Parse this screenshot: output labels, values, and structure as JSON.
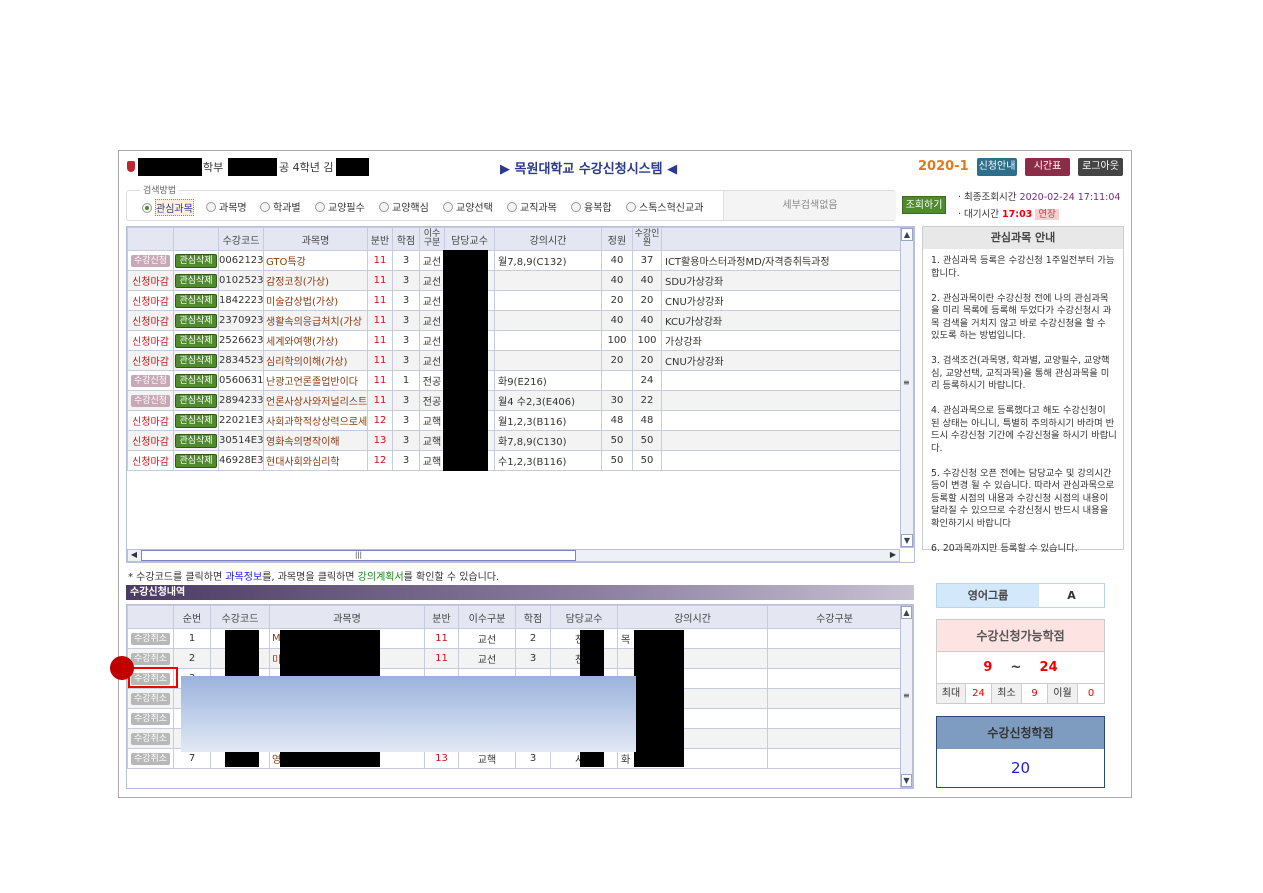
{
  "header": {
    "dept_suffix": "학부",
    "major_suffix": "공 4학년 김",
    "title": "▶ 목원대학교 수강신청시스템 ◀",
    "term": "2020-1",
    "buttons": [
      {
        "label": "신청안내",
        "color": "#2d6e8c"
      },
      {
        "label": "시간표",
        "color": "#8c2d48"
      },
      {
        "label": "로그아웃",
        "color": "#444444"
      }
    ]
  },
  "search": {
    "legend": "검색방법",
    "options": [
      "관심과목",
      "과목명",
      "학과별",
      "교양필수",
      "교양핵심",
      "교양선택",
      "교직과목",
      "융복합",
      "스톡스혁신교과"
    ],
    "selected": "관심과목",
    "detail": "세부검색없음",
    "submit": "조회하기",
    "last_query_label": "최종조회시간",
    "last_query": "2020-02-24 17:11:04",
    "wait_label": "대기시간",
    "wait": "17:03",
    "extend": "연장"
  },
  "interest": {
    "headers": [
      "",
      "",
      "수강코드",
      "과목명",
      "분반",
      "학점",
      "이수구분",
      "담당교수",
      "강의시간",
      "정원",
      "수강인원",
      ""
    ],
    "rows": [
      [
        "수강신청",
        "관심삭제",
        "0062123",
        "GTO특강",
        "11",
        "3",
        "교선",
        "",
        "월7,8,9(C132)",
        "40",
        "37",
        "ICT활용마스터과정MD/자격증취득과정"
      ],
      [
        "신청마감",
        "관심삭제",
        "0102523",
        "감정코칭(가상)",
        "11",
        "3",
        "교선",
        "",
        "",
        "40",
        "40",
        "SDU가상강좌"
      ],
      [
        "신청마감",
        "관심삭제",
        "1842223",
        "미술감상법(가상)",
        "11",
        "3",
        "교선",
        "",
        "",
        "20",
        "20",
        "CNU가상강좌"
      ],
      [
        "신청마감",
        "관심삭제",
        "2370923",
        "생활속의응급처치(가상",
        "11",
        "3",
        "교선",
        "",
        "",
        "40",
        "40",
        "KCU가상강좌"
      ],
      [
        "신청마감",
        "관심삭제",
        "2526623",
        "세계와여행(가상)",
        "11",
        "3",
        "교선",
        "",
        "",
        "100",
        "100",
        "가상강좌"
      ],
      [
        "신청마감",
        "관심삭제",
        "2834523",
        "심리학의이해(가상)",
        "11",
        "3",
        "교선",
        "",
        "",
        "20",
        "20",
        "CNU가상강좌"
      ],
      [
        "수강신청",
        "관심삭제",
        "0560631",
        "난광고언론졸업반이다",
        "11",
        "1",
        "전공",
        "",
        "화9(E216)",
        "",
        "24",
        ""
      ],
      [
        "수강신청",
        "관심삭제",
        "2894233",
        "언론사상사와저널리스트",
        "11",
        "3",
        "전공",
        "",
        "월4 수2,3(E406)",
        "30",
        "22",
        ""
      ],
      [
        "신청마감",
        "관심삭제",
        "22021E3",
        "사회과학적상상력으로세",
        "12",
        "3",
        "교핵",
        "",
        "월1,2,3(B116)",
        "48",
        "48",
        ""
      ],
      [
        "신청마감",
        "관심삭제",
        "30514E3",
        "영화속의명작이해",
        "13",
        "3",
        "교핵",
        "",
        "화7,8,9(C130)",
        "50",
        "50",
        ""
      ],
      [
        "신청마감",
        "관심삭제",
        "46928E3",
        "현대사회와심리학",
        "12",
        "3",
        "교핵",
        "",
        "수1,2,3(B116)",
        "50",
        "50",
        ""
      ]
    ]
  },
  "notice": {
    "p1": "* 수강코드를 클릭하면 ",
    "link1": "과목정보",
    "p2": "를, 과목명을 클릭하면 ",
    "link2": "강의계획서",
    "p3": "를 확인할 수 있습니다."
  },
  "guide": {
    "title": "관심과목 안내",
    "items": [
      "1. 관심과목 등록은 수강신청 1주일전부터 가능합니다.",
      "2. 관심과목이란 수강신청 전에 나의 관심과목을 미리 목록에 등록해 두었다가 수강신청시 과목 검색을 거치지 않고 바로 수강신청을 할 수 있도록 하는 방법입니다.",
      "3. 검색조건(과목명, 학과별, 교양필수, 교양핵심, 교양선택, 교직과목)을 통해 관심과목을 미리 등록하시기 바랍니다.",
      "4. 관심과목으로 등록했다고 해도 수강신청이 된 상태는 아니니, 특별히 주의하시기 바라며 반드시 수강신청 기간에 수강신청을 하시기 바랍니다.",
      "5. 수강신청 오픈 전에는 담당교수 및 강의시간 등이 변경 될 수 있습니다. 따라서 관심과목으로 등록할 시점의 내용과 수강신청 시점의 내용이 달라질 수 있으므로 수강신청시 반드시 내용을 확인하기시 바랍니다",
      "6. 20과목까지만 등록할 수 있습니다."
    ]
  },
  "enrolled": {
    "title": "수강신청내역",
    "headers": [
      "",
      "순번",
      "수강코드",
      "과목명",
      "분반",
      "이수구분",
      "학점",
      "담당교수",
      "강의시간",
      "수강구분"
    ],
    "rows": [
      [
        "수강취소",
        "1",
        "",
        "M",
        "11",
        "교선",
        "2",
        "천",
        "목",
        ""
      ],
      [
        "수강취소",
        "2",
        "",
        "미",
        "11",
        "교선",
        "3",
        "천",
        "",
        ""
      ],
      [
        "수강취소",
        "3",
        "",
        "",
        "",
        "",
        "",
        "",
        "",
        ""
      ],
      [
        "수강취소",
        "",
        "",
        "",
        "",
        "",
        "",
        "",
        "",
        ""
      ],
      [
        "수강취소",
        "",
        "",
        "",
        "",
        "",
        "",
        "",
        "",
        ""
      ],
      [
        "수강취소",
        "",
        "",
        "",
        "",
        "",
        "",
        "",
        "",
        ""
      ],
      [
        "수강취소",
        "7",
        "3",
        "영",
        "13",
        "교핵",
        "3",
        "서",
        "화",
        ""
      ]
    ]
  },
  "english_group": {
    "label": "영어그룹",
    "value": "A"
  },
  "credits_allowed": {
    "title": "수강신청가능학점",
    "min": "9",
    "tilde": "~",
    "max": "24",
    "max_label": "최대",
    "max_value": "24",
    "min_label": "최소",
    "min_value": "9",
    "carry_label": "이월",
    "carry_value": "0"
  },
  "credits_applied": {
    "title": "수강신청학점",
    "value": "20"
  }
}
